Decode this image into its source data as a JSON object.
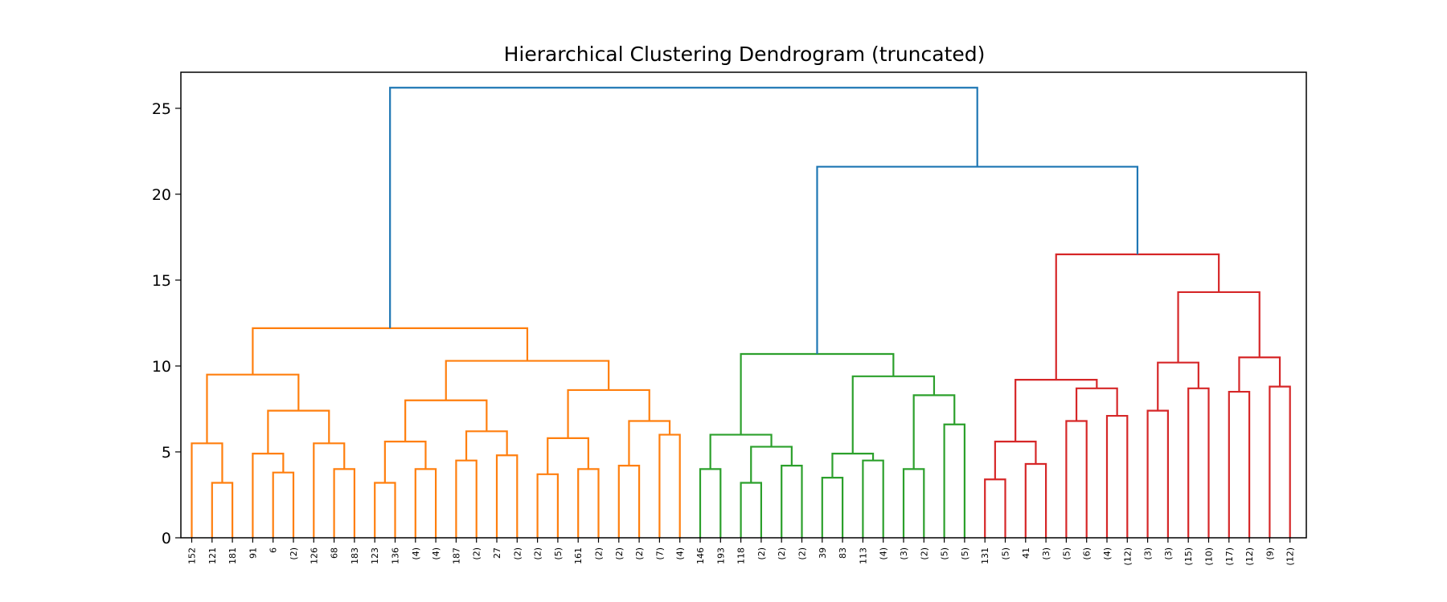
{
  "chart_data": {
    "type": "dendrogram",
    "title": "Hierarchical Clustering Dendrogram (truncated)",
    "xlabel": "",
    "ylabel": "",
    "ylim": [
      0,
      27.1
    ],
    "yticks": [
      0,
      5,
      10,
      15,
      20,
      25
    ],
    "grid": false,
    "colors": {
      "orange": "#ff7f0e",
      "green": "#2ca02c",
      "red": "#d62728",
      "blue": "#1f77b4"
    },
    "leaf_labels": [
      "152",
      "121",
      "181",
      "91",
      "6",
      "(2)",
      "126",
      "68",
      "183",
      "123",
      "136",
      "(4)",
      "(4)",
      "187",
      "(2)",
      "27",
      "(2)",
      "(2)",
      "(5)",
      "161",
      "(2)",
      "(2)",
      "(2)",
      "(7)",
      "(4)",
      "146",
      "193",
      "118",
      "(2)",
      "(2)",
      "(2)",
      "39",
      "83",
      "113",
      "(4)",
      "(3)",
      "(2)",
      "(5)",
      "(5)",
      "131",
      "(5)",
      "41",
      "(3)",
      "(5)",
      "(6)",
      "(4)",
      "(12)",
      "(3)",
      "(3)",
      "(15)",
      "(10)",
      "(17)",
      "(12)",
      "(9)",
      "(12)"
    ],
    "links": [
      {
        "left": "L1",
        "right": "L2",
        "height": 3.2,
        "color": "orange"
      },
      {
        "left": "L0",
        "right": "N0",
        "height": 5.5,
        "color": "orange"
      },
      {
        "left": "L4",
        "right": "L5",
        "height": 3.8,
        "color": "orange"
      },
      {
        "left": "L3",
        "right": "N2",
        "height": 4.9,
        "color": "orange"
      },
      {
        "left": "L7",
        "right": "L8",
        "height": 4.0,
        "color": "orange"
      },
      {
        "left": "L6",
        "right": "N4",
        "height": 5.5,
        "color": "orange"
      },
      {
        "left": "N3",
        "right": "N5",
        "height": 7.4,
        "color": "orange"
      },
      {
        "left": "N1",
        "right": "N6",
        "height": 9.5,
        "color": "orange"
      },
      {
        "left": "L9",
        "right": "L10",
        "height": 3.2,
        "color": "orange"
      },
      {
        "left": "L11",
        "right": "L12",
        "height": 4.0,
        "color": "orange"
      },
      {
        "left": "N8",
        "right": "N9",
        "height": 5.6,
        "color": "orange"
      },
      {
        "left": "L13",
        "right": "L14",
        "height": 4.5,
        "color": "orange"
      },
      {
        "left": "L15",
        "right": "L16",
        "height": 4.8,
        "color": "orange"
      },
      {
        "left": "N11",
        "right": "N12",
        "height": 6.2,
        "color": "orange"
      },
      {
        "left": "N10",
        "right": "N13",
        "height": 8.0,
        "color": "orange"
      },
      {
        "left": "L17",
        "right": "L18",
        "height": 3.7,
        "color": "orange"
      },
      {
        "left": "L19",
        "right": "L20",
        "height": 4.0,
        "color": "orange"
      },
      {
        "left": "N15",
        "right": "N16",
        "height": 5.8,
        "color": "orange"
      },
      {
        "left": "L21",
        "right": "L22",
        "height": 4.2,
        "color": "orange"
      },
      {
        "left": "L23",
        "right": "L24",
        "height": 6.0,
        "color": "orange"
      },
      {
        "left": "N18",
        "right": "N19",
        "height": 6.8,
        "color": "orange"
      },
      {
        "left": "N17",
        "right": "N20",
        "height": 8.6,
        "color": "orange"
      },
      {
        "left": "N14",
        "right": "N21",
        "height": 10.3,
        "color": "orange"
      },
      {
        "left": "N7",
        "right": "N22",
        "height": 12.2,
        "color": "orange"
      },
      {
        "left": "L25",
        "right": "L26",
        "height": 4.0,
        "color": "green"
      },
      {
        "left": "L27",
        "right": "L28",
        "height": 3.2,
        "color": "green"
      },
      {
        "left": "L29",
        "right": "L30",
        "height": 4.2,
        "color": "green"
      },
      {
        "left": "N25",
        "right": "N26",
        "height": 5.3,
        "color": "green"
      },
      {
        "left": "N24",
        "right": "N27",
        "height": 6.0,
        "color": "green"
      },
      {
        "left": "L31",
        "right": "L32",
        "height": 3.5,
        "color": "green"
      },
      {
        "left": "L33",
        "right": "L34",
        "height": 4.5,
        "color": "green"
      },
      {
        "left": "N29",
        "right": "N30",
        "height": 4.9,
        "color": "green"
      },
      {
        "left": "L35",
        "right": "L36",
        "height": 4.0,
        "color": "green"
      },
      {
        "left": "L37",
        "right": "L38",
        "height": 6.6,
        "color": "green"
      },
      {
        "left": "N32",
        "right": "N33",
        "height": 8.3,
        "color": "green"
      },
      {
        "left": "N31",
        "right": "N34",
        "height": 9.4,
        "color": "green"
      },
      {
        "left": "N28",
        "right": "N35",
        "height": 10.7,
        "color": "green"
      },
      {
        "left": "L39",
        "right": "L40",
        "height": 3.4,
        "color": "red"
      },
      {
        "left": "L41",
        "right": "L42",
        "height": 4.3,
        "color": "red"
      },
      {
        "left": "N37",
        "right": "N38",
        "height": 5.6,
        "color": "red"
      },
      {
        "left": "L43",
        "right": "L44",
        "height": 6.8,
        "color": "red"
      },
      {
        "left": "L45",
        "right": "L46",
        "height": 7.1,
        "color": "red"
      },
      {
        "left": "N40",
        "right": "N41",
        "height": 8.7,
        "color": "red"
      },
      {
        "left": "N39",
        "right": "N42",
        "height": 9.2,
        "color": "red"
      },
      {
        "left": "L47",
        "right": "L48",
        "height": 7.4,
        "color": "red"
      },
      {
        "left": "L49",
        "right": "L50",
        "height": 8.7,
        "color": "red"
      },
      {
        "left": "N44",
        "right": "N45",
        "height": 10.2,
        "color": "red"
      },
      {
        "left": "L51",
        "right": "L52",
        "height": 8.5,
        "color": "red"
      },
      {
        "left": "L53",
        "right": "L54",
        "height": 8.8,
        "color": "red"
      },
      {
        "left": "N47",
        "right": "N48",
        "height": 10.5,
        "color": "red"
      },
      {
        "left": "N46",
        "right": "N49",
        "height": 14.3,
        "color": "red"
      },
      {
        "left": "N43",
        "right": "N50",
        "height": 16.5,
        "color": "red"
      },
      {
        "left": "N36",
        "right": "N51",
        "height": 21.6,
        "color": "blue"
      },
      {
        "left": "N23",
        "right": "N52",
        "height": 26.2,
        "color": "blue"
      }
    ]
  }
}
